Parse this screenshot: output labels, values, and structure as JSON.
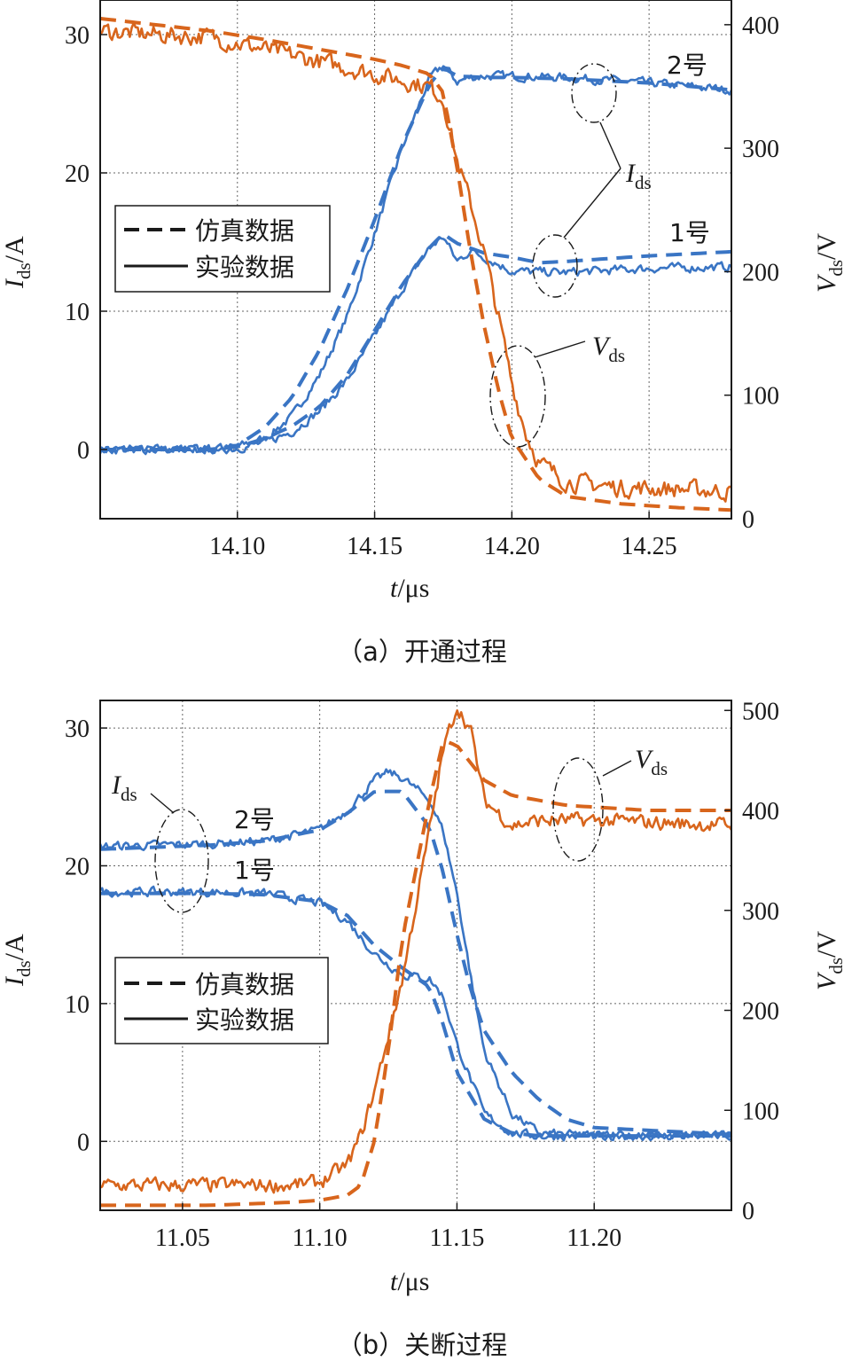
{
  "chart_data": [
    {
      "type": "line",
      "caption": "（a）开通过程",
      "xlabel_italic": "t",
      "xlabel_unit": "/μs",
      "ylabel_left_italic": "I",
      "ylabel_left_sub": "ds",
      "ylabel_left_unit": "/A",
      "ylabel_right_italic": "V",
      "ylabel_right_sub": "ds",
      "ylabel_right_unit": "/V",
      "xlim": [
        14.05,
        14.28
      ],
      "ylim_left": [
        -5,
        32.5
      ],
      "ylim_right": [
        0,
        420
      ],
      "xticks": [
        "14.10",
        "14.15",
        "14.20",
        "14.25"
      ],
      "yticks_left": [
        "0",
        "10",
        "20",
        "30"
      ],
      "yticks_right": [
        "0",
        "100",
        "200",
        "300",
        "400"
      ],
      "grid": true,
      "legend": {
        "position": "center-left",
        "entries": [
          {
            "style": "dashed",
            "label": "仿真数据"
          },
          {
            "style": "solid",
            "label": "实验数据"
          }
        ]
      },
      "annotations": {
        "label_2": "2号",
        "label_1": "1号",
        "ids_italic": "I",
        "ids_sub": "ds",
        "vds_italic": "V",
        "vds_sub": "ds"
      },
      "series": [
        {
          "axis": "left",
          "color": "#3a75c4",
          "style": "solid",
          "x": [
            14.05,
            14.09,
            14.1,
            14.11,
            14.12,
            14.13,
            14.14,
            14.15,
            14.16,
            14.17,
            14.175,
            14.18,
            14.185,
            14.19,
            14.2,
            14.22,
            14.25,
            14.28
          ],
          "y": [
            0,
            0,
            0.2,
            0.8,
            2.4,
            5.4,
            9.6,
            15.6,
            21.8,
            26.8,
            27.8,
            26.6,
            26.9,
            27.0,
            27.0,
            26.9,
            26.5,
            26.0
          ]
        },
        {
          "axis": "left",
          "color": "#3a75c4",
          "style": "dashed",
          "x": [
            14.05,
            14.09,
            14.1,
            14.11,
            14.12,
            14.13,
            14.14,
            14.15,
            14.16,
            14.17,
            14.175,
            14.18,
            14.19,
            14.2,
            14.22,
            14.25,
            14.28
          ],
          "y": [
            0,
            0,
            0.3,
            1.6,
            3.8,
            7.2,
            11.6,
            16.6,
            22.0,
            26.4,
            27.6,
            27.0,
            26.9,
            26.9,
            26.8,
            26.5,
            26.0
          ]
        },
        {
          "axis": "left",
          "color": "#3a75c4",
          "style": "solid",
          "x": [
            14.05,
            14.09,
            14.1,
            14.11,
            14.12,
            14.13,
            14.14,
            14.15,
            14.16,
            14.17,
            14.175,
            14.18,
            14.185,
            14.19,
            14.2,
            14.22,
            14.25,
            14.28
          ],
          "y": [
            0,
            0,
            0.1,
            0.5,
            1.3,
            2.8,
            5.0,
            8.2,
            11.6,
            14.6,
            15.4,
            13.6,
            14.4,
            13.9,
            12.9,
            12.8,
            13.1,
            13.2
          ]
        },
        {
          "axis": "left",
          "color": "#3a75c4",
          "style": "dashed",
          "x": [
            14.05,
            14.09,
            14.1,
            14.11,
            14.12,
            14.13,
            14.14,
            14.15,
            14.16,
            14.17,
            14.175,
            14.18,
            14.19,
            14.2,
            14.21,
            14.22,
            14.25,
            14.28
          ],
          "y": [
            0,
            0,
            0.2,
            0.8,
            1.7,
            3.1,
            5.4,
            8.6,
            11.9,
            14.6,
            15.6,
            14.9,
            14.2,
            13.9,
            13.5,
            13.6,
            14.0,
            14.3
          ]
        },
        {
          "axis": "right",
          "color": "#d8651c",
          "style": "solid",
          "x": [
            14.05,
            14.07,
            14.09,
            14.11,
            14.13,
            14.15,
            14.16,
            14.17,
            14.175,
            14.18,
            14.185,
            14.19,
            14.195,
            14.2,
            14.205,
            14.21,
            14.22,
            14.24,
            14.26,
            14.28
          ],
          "y": [
            395,
            392,
            390,
            380,
            370,
            360,
            355,
            350,
            340,
            290,
            255,
            215,
            165,
            110,
            70,
            45,
            30,
            25,
            24,
            22
          ]
        },
        {
          "axis": "right",
          "color": "#d8651c",
          "style": "dashed",
          "x": [
            14.05,
            14.07,
            14.09,
            14.11,
            14.13,
            14.15,
            14.16,
            14.17,
            14.175,
            14.18,
            14.185,
            14.19,
            14.195,
            14.2,
            14.21,
            14.22,
            14.24,
            14.26,
            14.28
          ],
          "y": [
            405,
            400,
            395,
            388,
            380,
            372,
            367,
            360,
            345,
            285,
            215,
            155,
            105,
            65,
            32,
            18,
            12,
            9,
            7
          ]
        }
      ]
    },
    {
      "type": "line",
      "caption": "（b）关断过程",
      "xlabel_italic": "t",
      "xlabel_unit": "/μs",
      "ylabel_left_italic": "I",
      "ylabel_left_sub": "ds",
      "ylabel_left_unit": "/A",
      "ylabel_right_italic": "V",
      "ylabel_right_sub": "ds",
      "ylabel_right_unit": "/V",
      "xlim": [
        11.02,
        11.25
      ],
      "ylim_left": [
        -5,
        32
      ],
      "ylim_right": [
        0,
        510
      ],
      "xticks": [
        "11.05",
        "11.10",
        "11.15",
        "11.20"
      ],
      "yticks_left": [
        "0",
        "10",
        "20",
        "30"
      ],
      "yticks_right": [
        "0",
        "100",
        "200",
        "300",
        "400",
        "500"
      ],
      "grid": true,
      "legend": {
        "position": "bottom-left",
        "entries": [
          {
            "style": "dashed",
            "label": "仿真数据"
          },
          {
            "style": "solid",
            "label": "实验数据"
          }
        ]
      },
      "annotations": {
        "label_2": "2号",
        "label_1": "1号",
        "ids_italic": "I",
        "ids_sub": "ds",
        "vds_italic": "V",
        "vds_sub": "ds"
      },
      "series": [
        {
          "axis": "left",
          "color": "#3a75c4",
          "style": "solid",
          "x": [
            11.02,
            11.06,
            11.08,
            11.1,
            11.11,
            11.12,
            11.125,
            11.13,
            11.14,
            11.145,
            11.15,
            11.155,
            11.16,
            11.17,
            11.18,
            11.2,
            11.25
          ],
          "y": [
            21.4,
            21.6,
            21.8,
            22.6,
            24.0,
            26.2,
            26.8,
            26.4,
            24.8,
            22.5,
            18.0,
            12.0,
            6.5,
            2.0,
            0.6,
            0.4,
            0.4
          ]
        },
        {
          "axis": "left",
          "color": "#3a75c4",
          "style": "dashed",
          "x": [
            11.02,
            11.06,
            11.08,
            11.1,
            11.11,
            11.12,
            11.13,
            11.14,
            11.145,
            11.15,
            11.155,
            11.16,
            11.17,
            11.18,
            11.19,
            11.2,
            11.25
          ],
          "y": [
            21.2,
            21.5,
            21.8,
            22.6,
            23.8,
            25.4,
            25.4,
            22.8,
            19.5,
            15.0,
            11.0,
            8.0,
            5.0,
            3.0,
            1.6,
            1.0,
            0.5
          ]
        },
        {
          "axis": "left",
          "color": "#3a75c4",
          "style": "solid",
          "x": [
            11.02,
            11.06,
            11.08,
            11.1,
            11.11,
            11.12,
            11.13,
            11.14,
            11.145,
            11.15,
            11.16,
            11.17,
            11.18,
            11.2,
            11.25
          ],
          "y": [
            18.1,
            18.1,
            18.0,
            17.3,
            16.0,
            13.6,
            12.1,
            11.8,
            10.5,
            7.0,
            2.0,
            0.6,
            0.4,
            0.4,
            0.4
          ]
        },
        {
          "axis": "left",
          "color": "#3a75c4",
          "style": "dashed",
          "x": [
            11.02,
            11.06,
            11.08,
            11.1,
            11.11,
            11.12,
            11.13,
            11.14,
            11.145,
            11.15,
            11.16,
            11.17,
            11.18,
            11.2,
            11.25
          ],
          "y": [
            18.0,
            18.0,
            17.9,
            17.4,
            16.4,
            14.2,
            12.6,
            11.2,
            8.5,
            5.0,
            1.6,
            0.6,
            0.4,
            0.4,
            0.4
          ]
        },
        {
          "axis": "right",
          "color": "#d8651c",
          "style": "solid",
          "x": [
            11.02,
            11.06,
            11.09,
            11.1,
            11.11,
            11.115,
            11.12,
            11.13,
            11.14,
            11.145,
            11.15,
            11.155,
            11.16,
            11.17,
            11.18,
            11.2,
            11.25
          ],
          "y": [
            25,
            25,
            25,
            28,
            45,
            75,
            120,
            230,
            380,
            460,
            505,
            480,
            410,
            385,
            390,
            390,
            385
          ]
        },
        {
          "axis": "right",
          "color": "#d8651c",
          "style": "dashed",
          "x": [
            11.02,
            11.06,
            11.09,
            11.1,
            11.11,
            11.115,
            11.12,
            11.125,
            11.13,
            11.14,
            11.145,
            11.15,
            11.16,
            11.17,
            11.19,
            11.22,
            11.25
          ],
          "y": [
            5,
            5,
            8,
            10,
            15,
            25,
            70,
            160,
            270,
            410,
            470,
            465,
            430,
            415,
            405,
            400,
            400
          ]
        }
      ]
    }
  ]
}
